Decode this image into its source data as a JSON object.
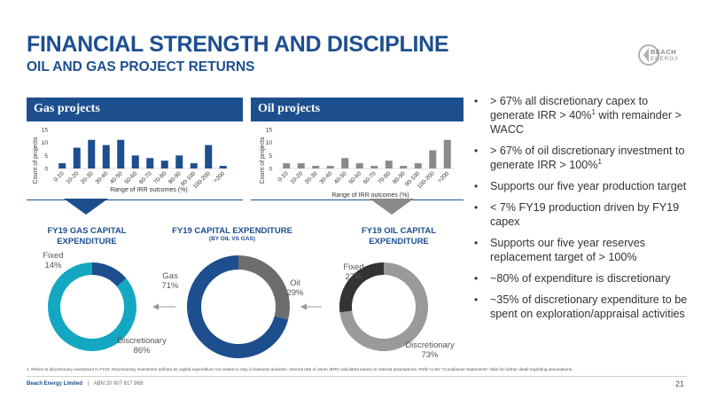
{
  "slide": {
    "title": "FINANCIAL STRENGTH AND DISCIPLINE",
    "subtitle": "OIL AND GAS PROJECT RETURNS",
    "logo": {
      "line1": "BEACH",
      "line2": "ENERGY"
    },
    "page_number": "21",
    "footer": {
      "company": "Beach Energy Limited",
      "separator": "|",
      "abn": "ABN 20 007 617 969"
    },
    "footnote": "1. Refers to discretionary investment in FY19. Discretionary investment defined as capital expenditure not related to stay in business activities. Internal rate of return (IRR) calculated based on internal assumptions. Refer to the \"Compliance Statements\" slide for further detail regarding assumptions."
  },
  "gas_panel": {
    "header": "Gas projects"
  },
  "oil_panel": {
    "header": "Oil projects"
  },
  "donuts": {
    "gas": {
      "title": "FY19 GAS CAPITAL EXPENDITURE"
    },
    "total": {
      "title": "FY19 CAPITAL EXPENDITURE",
      "subtitle": "(BY OIL VS GAS)"
    },
    "oil": {
      "title": "FY19 OIL CAPITAL EXPENDITURE"
    }
  },
  "bullets": [
    {
      "text": "> 67% all discretionary capex to generate IRR > 40%",
      "sup": "1",
      "after": " with remainder > WACC"
    },
    {
      "text": "> 67% of oil discretionary investment to generate IRR > 100%",
      "sup": "1",
      "after": ""
    },
    {
      "text": "Supports our five year production target",
      "sup": "",
      "after": ""
    },
    {
      "text": "< 7% FY19 production driven by FY19 capex",
      "sup": "",
      "after": ""
    },
    {
      "text": "Supports our five year reserves replacement target of > 100%",
      "sup": "",
      "after": ""
    },
    {
      "text": "~80% of expenditure is discretionary",
      "sup": "",
      "after": ""
    },
    {
      "text": "~35% of discretionary expenditure to be spent on exploration/appraisal activities",
      "sup": "",
      "after": ""
    }
  ],
  "colors": {
    "brand_blue": "#1d4f8f",
    "gas_bar": "#1d4f8f",
    "oil_bar": "#8a8a8a",
    "teal": "#14a7c2",
    "dark_grey": "#333333",
    "light_grey": "#9a9a9a"
  },
  "chart_data": [
    {
      "type": "bar",
      "title": "Gas projects",
      "xlabel": "Range of IRR outcomes (%)",
      "ylabel": "Count of projects",
      "categories": [
        "0-10",
        "10-20",
        "20-30",
        "30-40",
        "40-50",
        "50-60",
        "60-70",
        "70-80",
        "80-90",
        "90-100",
        "100-200",
        ">200"
      ],
      "values": [
        2,
        8,
        11,
        9,
        11,
        5,
        4,
        3,
        5,
        2,
        9,
        1
      ],
      "ylim": [
        0,
        15
      ],
      "yticks": [
        0,
        5,
        10,
        15
      ],
      "grid": false
    },
    {
      "type": "bar",
      "title": "Oil projects",
      "xlabel": "Range of IRR outcomes (%)",
      "ylabel": "Count of projects",
      "categories": [
        "0-10",
        "10-20",
        "20-30",
        "30-40",
        "40-50",
        "50-60",
        "60-70",
        "70-80",
        "80-90",
        "90-100",
        "100-200",
        ">200"
      ],
      "values": [
        2,
        2,
        1,
        1,
        4,
        2,
        1,
        3,
        1,
        2,
        7,
        11
      ],
      "ylim": [
        0,
        15
      ],
      "yticks": [
        0,
        5,
        10,
        15
      ],
      "grid": false
    },
    {
      "type": "pie",
      "title": "FY19 GAS CAPITAL EXPENDITURE",
      "labels": [
        "Fixed",
        "Discretionary"
      ],
      "values": [
        14,
        86
      ],
      "display": [
        "14%",
        "86%"
      ],
      "colors": [
        "#1d4f8f",
        "#14a7c2"
      ]
    },
    {
      "type": "pie",
      "title": "FY19 CAPITAL EXPENDITURE",
      "subtitle": "(BY OIL VS GAS)",
      "labels": [
        "Oil",
        "Gas"
      ],
      "values": [
        29,
        71
      ],
      "display": [
        "29%",
        "71%"
      ],
      "colors": [
        "#6d6d6d",
        "#1d4f8f"
      ]
    },
    {
      "type": "pie",
      "title": "FY19 OIL CAPITAL EXPENDITURE",
      "labels": [
        "Fixed",
        "Discretionary"
      ],
      "values": [
        27,
        73
      ],
      "display": [
        "27%",
        "73%"
      ],
      "colors": [
        "#333333",
        "#9a9a9a"
      ]
    }
  ]
}
